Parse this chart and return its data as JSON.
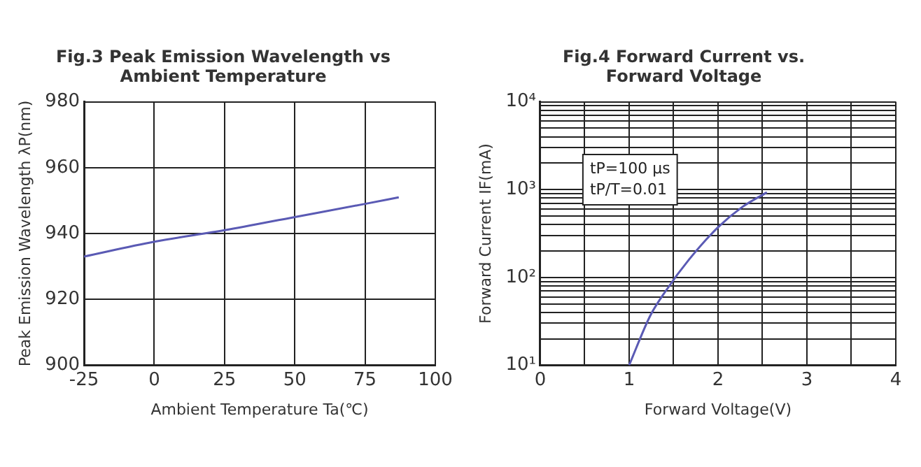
{
  "chart_data": [
    {
      "type": "line",
      "title": "Fig.3 Peak Emission Wavelength vs\nAmbient Temperature",
      "xlabel": "Ambient Temperature Ta(℃)",
      "ylabel": "Peak Emission Wavelength λP(nm)",
      "color": "#5a5ab4",
      "marker": "none",
      "grid": true,
      "x": [
        -25,
        0,
        25,
        50,
        75,
        87
      ],
      "values": [
        933,
        937.5,
        941,
        945,
        949,
        951
      ],
      "xlim": [
        -25,
        100
      ],
      "xticks": [
        -25,
        0,
        25,
        50,
        75,
        100
      ],
      "ylim": [
        900,
        980
      ],
      "yticks": [
        900,
        920,
        940,
        960,
        980
      ]
    },
    {
      "type": "line",
      "title": "Fig.4 Forward Current vs.\nForward Voltage",
      "xlabel": "Forward Voltage(V)",
      "ylabel": "Forward Current IF(mA)",
      "color": "#5a5ab4",
      "marker": "none",
      "grid": true,
      "log": "y",
      "annotations": [
        "tP=100 μs",
        "tP/T=0.01"
      ],
      "x": [
        1.0,
        1.24,
        1.42,
        1.67,
        2.0,
        2.27,
        2.55
      ],
      "values": [
        10,
        37,
        72,
        158,
        372,
        630,
        930
      ],
      "xlim": [
        0,
        4
      ],
      "xticks": [
        0,
        {
          "value": 0.5,
          "label": null
        },
        1,
        {
          "value": 1.5,
          "label": null
        },
        2,
        {
          "value": 2.5,
          "label": null
        },
        3,
        {
          "value": 3.5,
          "label": null
        },
        4
      ],
      "ylim": [
        10,
        10000
      ],
      "yticks": [
        {
          "value": 10,
          "label": "10¹"
        },
        {
          "value": 20,
          "label": null
        },
        {
          "value": 30,
          "label": null
        },
        {
          "value": 40,
          "label": null
        },
        {
          "value": 50,
          "label": null
        },
        {
          "value": 60,
          "label": null
        },
        {
          "value": 70,
          "label": null
        },
        {
          "value": 80,
          "label": null
        },
        {
          "value": 90,
          "label": null
        },
        {
          "value": 100,
          "label": "10²"
        },
        {
          "value": 200,
          "label": null
        },
        {
          "value": 300,
          "label": null
        },
        {
          "value": 400,
          "label": null
        },
        {
          "value": 500,
          "label": null
        },
        {
          "value": 600,
          "label": null
        },
        {
          "value": 700,
          "label": null
        },
        {
          "value": 800,
          "label": null
        },
        {
          "value": 900,
          "label": null
        },
        {
          "value": 1000,
          "label": "10³"
        },
        {
          "value": 2000,
          "label": null
        },
        {
          "value": 3000,
          "label": null
        },
        {
          "value": 4000,
          "label": null
        },
        {
          "value": 5000,
          "label": null
        },
        {
          "value": 6000,
          "label": null
        },
        {
          "value": 7000,
          "label": null
        },
        {
          "value": 8000,
          "label": null
        },
        {
          "value": 9000,
          "label": null
        },
        {
          "value": 10000,
          "label": "10⁴"
        }
      ]
    }
  ]
}
